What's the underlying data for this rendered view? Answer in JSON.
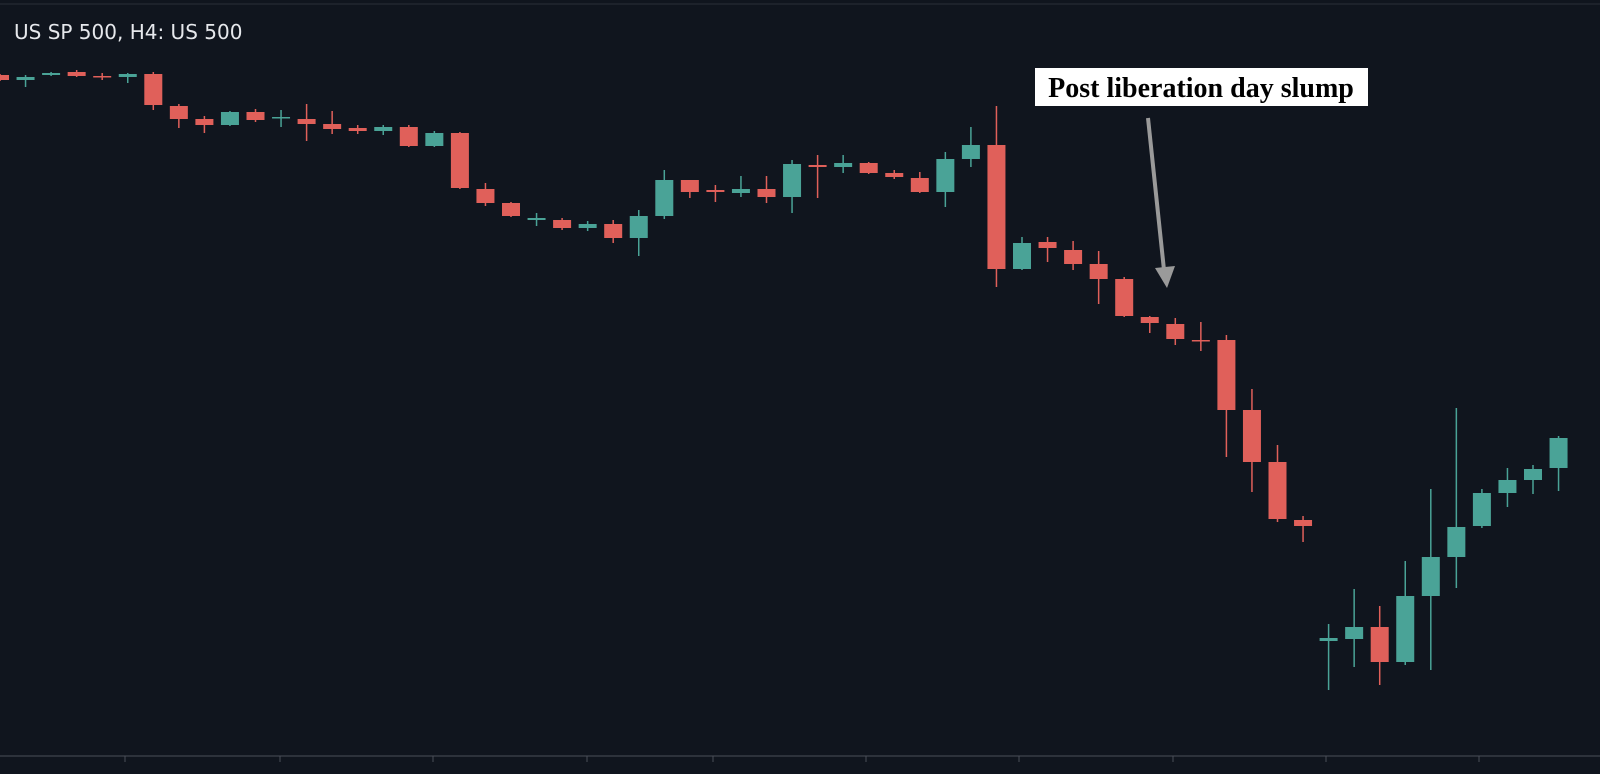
{
  "chart_data": {
    "type": "candlestick",
    "title": "US SP 500, H4: US 500",
    "annotation": "Post liberation day slump",
    "up_color": "#4aa397",
    "down_color": "#e0605a",
    "ylim": [
      4689,
      5850
    ],
    "open": [
      5737.5,
      5730,
      5737.5,
      5742,
      5736,
      5734.5,
      5739,
      5691,
      5671.5,
      5662.5,
      5682,
      5673,
      5671.5,
      5664,
      5658,
      5653.5,
      5659.5,
      5631,
      5650.5,
      5566.5,
      5545.5,
      5520,
      5520,
      5508,
      5514,
      5493,
      5526,
      5580,
      5565,
      5560.5,
      5566.5,
      5554.5,
      5602.5,
      5599.5,
      5605.5,
      5590.5,
      5583,
      5562,
      5611.5,
      5632.5,
      5446.5,
      5487,
      5475,
      5454,
      5431.5,
      5374.5,
      5364,
      5340,
      5340,
      5235,
      5157,
      5070,
      4888.5,
      4891.5,
      4909.5,
      4857,
      4956,
      5014.5,
      5061,
      5110.5,
      5130,
      5148
    ],
    "high": [
      5739,
      5737.5,
      5742,
      5745,
      5740.5,
      5740.5,
      5742,
      5694,
      5676,
      5683.5,
      5686.5,
      5685,
      5694,
      5683.5,
      5662.5,
      5662.5,
      5662.5,
      5653.5,
      5652,
      5575.5,
      5547,
      5530.5,
      5523,
      5518.5,
      5520,
      5535,
      5595,
      5580,
      5572.5,
      5586,
      5586,
      5610,
      5617.5,
      5617.5,
      5607,
      5595,
      5592,
      5622,
      5659.5,
      5691,
      5494.5,
      5494.5,
      5488.5,
      5473.5,
      5434.5,
      5376,
      5373,
      5367,
      5347.5,
      5266.5,
      5182.5,
      5076,
      4914,
      4966.5,
      4941,
      5008.5,
      5116.5,
      5238,
      5116.5,
      5148,
      5152.5,
      5196
    ],
    "low": [
      5728.5,
      5719.5,
      5736,
      5734.5,
      5730,
      5725.5,
      5685,
      5658,
      5650.5,
      5661,
      5667,
      5659.5,
      5638.5,
      5649,
      5649,
      5647.5,
      5629.5,
      5629.5,
      5566.5,
      5541,
      5524.5,
      5511,
      5505,
      5503.5,
      5485.5,
      5466,
      5521.5,
      5553,
      5547,
      5554.5,
      5545.5,
      5530.5,
      5553,
      5590.5,
      5589,
      5581.5,
      5560.5,
      5539.5,
      5599.5,
      5419.5,
      5445,
      5457,
      5445,
      5394,
      5374.5,
      5350.5,
      5332.5,
      5323.5,
      5164.5,
      5112,
      5067,
      5037,
      4815,
      4849.5,
      4822.5,
      4852.5,
      4845,
      4968,
      5058,
      5089.5,
      5109,
      5113.5
    ],
    "close": [
      5730,
      5734.5,
      5740.5,
      5736,
      5734.5,
      5739,
      5692.5,
      5671.5,
      5662.5,
      5682,
      5670,
      5674.5,
      5664,
      5656.5,
      5653.5,
      5659.5,
      5631,
      5650.5,
      5568,
      5545.5,
      5526,
      5523,
      5508,
      5514,
      5493,
      5526,
      5580,
      5562,
      5562,
      5566.5,
      5554.5,
      5604,
      5599.5,
      5605.5,
      5590.5,
      5584.5,
      5562,
      5611.5,
      5632.5,
      5446.5,
      5485.5,
      5478,
      5454,
      5431.5,
      5376,
      5365.5,
      5341.5,
      5338.5,
      5235,
      5157,
      5071.5,
      5061,
      4893,
      4909.5,
      4857,
      4956,
      5014.5,
      5059.5,
      5110.5,
      5130,
      5146.5,
      5193
    ]
  }
}
